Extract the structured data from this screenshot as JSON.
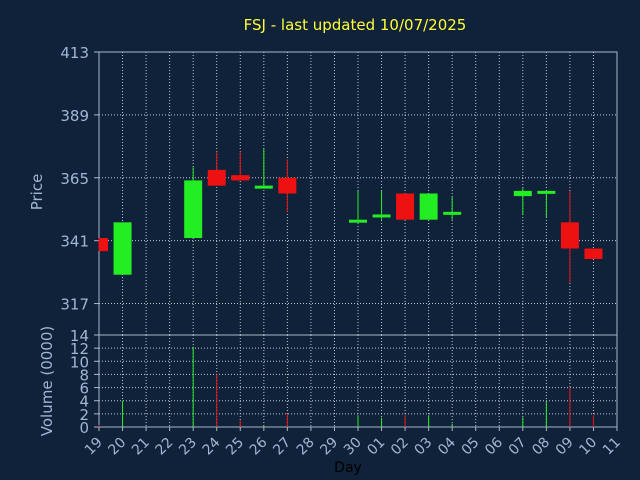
{
  "chart_data": {
    "type": "candlestick",
    "title": "FSJ - last updated 10/07/2025",
    "xlabel": "Day",
    "price_ylabel": "Price",
    "volume_ylabel": "Volume (0000)",
    "price_yticks": [
      317,
      341,
      365,
      389,
      413
    ],
    "price_ylim": [
      305,
      413
    ],
    "volume_yticks": [
      0,
      2,
      4,
      6,
      8,
      10,
      12,
      14
    ],
    "volume_ylim": [
      0,
      14
    ],
    "x_ticks": [
      "19",
      "20",
      "21",
      "22",
      "23",
      "24",
      "25",
      "26",
      "27",
      "28",
      "29",
      "30",
      "01",
      "02",
      "03",
      "04",
      "05",
      "06",
      "07",
      "08",
      "09",
      "10",
      "11"
    ],
    "grid": true,
    "candles": [
      {
        "day": "19",
        "open": 342,
        "high": 342,
        "low": 337,
        "close": 337,
        "volume": 0.3
      },
      {
        "day": "20",
        "open": 328,
        "high": 348,
        "low": 328,
        "close": 348,
        "volume": 4.0
      },
      {
        "day": "23",
        "open": 342,
        "high": 369,
        "low": 342,
        "close": 364,
        "volume": 12.2
      },
      {
        "day": "24",
        "open": 368,
        "high": 375,
        "low": 362,
        "close": 362,
        "volume": 8.0
      },
      {
        "day": "25",
        "open": 366,
        "high": 375,
        "low": 364,
        "close": 364,
        "volume": 1.0
      },
      {
        "day": "26",
        "open": 362,
        "high": 376,
        "low": 362,
        "close": 362,
        "volume": 0.2
      },
      {
        "day": "27",
        "open": 365,
        "high": 372,
        "low": 352,
        "close": 359,
        "volume": 2.0
      },
      {
        "day": "30",
        "open": 348,
        "high": 360,
        "low": 348,
        "close": 349,
        "volume": 1.8
      },
      {
        "day": "01",
        "open": 350,
        "high": 360,
        "low": 349,
        "close": 351,
        "volume": 1.4
      },
      {
        "day": "02",
        "open": 359,
        "high": 359,
        "low": 349,
        "close": 349,
        "volume": 1.8
      },
      {
        "day": "03",
        "open": 349,
        "high": 359,
        "low": 349,
        "close": 359,
        "volume": 1.8
      },
      {
        "day": "04",
        "open": 351,
        "high": 358,
        "low": 349,
        "close": 352,
        "volume": 0.5
      },
      {
        "day": "07",
        "open": 358,
        "high": 361,
        "low": 351,
        "close": 360,
        "volume": 1.5
      },
      {
        "day": "08",
        "open": 360,
        "high": 360,
        "low": 350,
        "close": 360,
        "volume": 3.8
      },
      {
        "day": "09",
        "open": 348,
        "high": 360,
        "low": 325,
        "close": 338,
        "volume": 6.0
      },
      {
        "day": "10",
        "open": 338,
        "high": 338,
        "low": 334,
        "close": 334,
        "volume": 1.8
      }
    ],
    "colors": {
      "background": "#10213A",
      "plot_bg": "#10213A",
      "frame": "#A8B8C8",
      "grid": "#C0C8D0",
      "title": "#FFFF33",
      "axis_text": "#9FB7D6",
      "xlabel_text": "#000000",
      "up": "#22EE22",
      "down": "#EE1111"
    }
  }
}
